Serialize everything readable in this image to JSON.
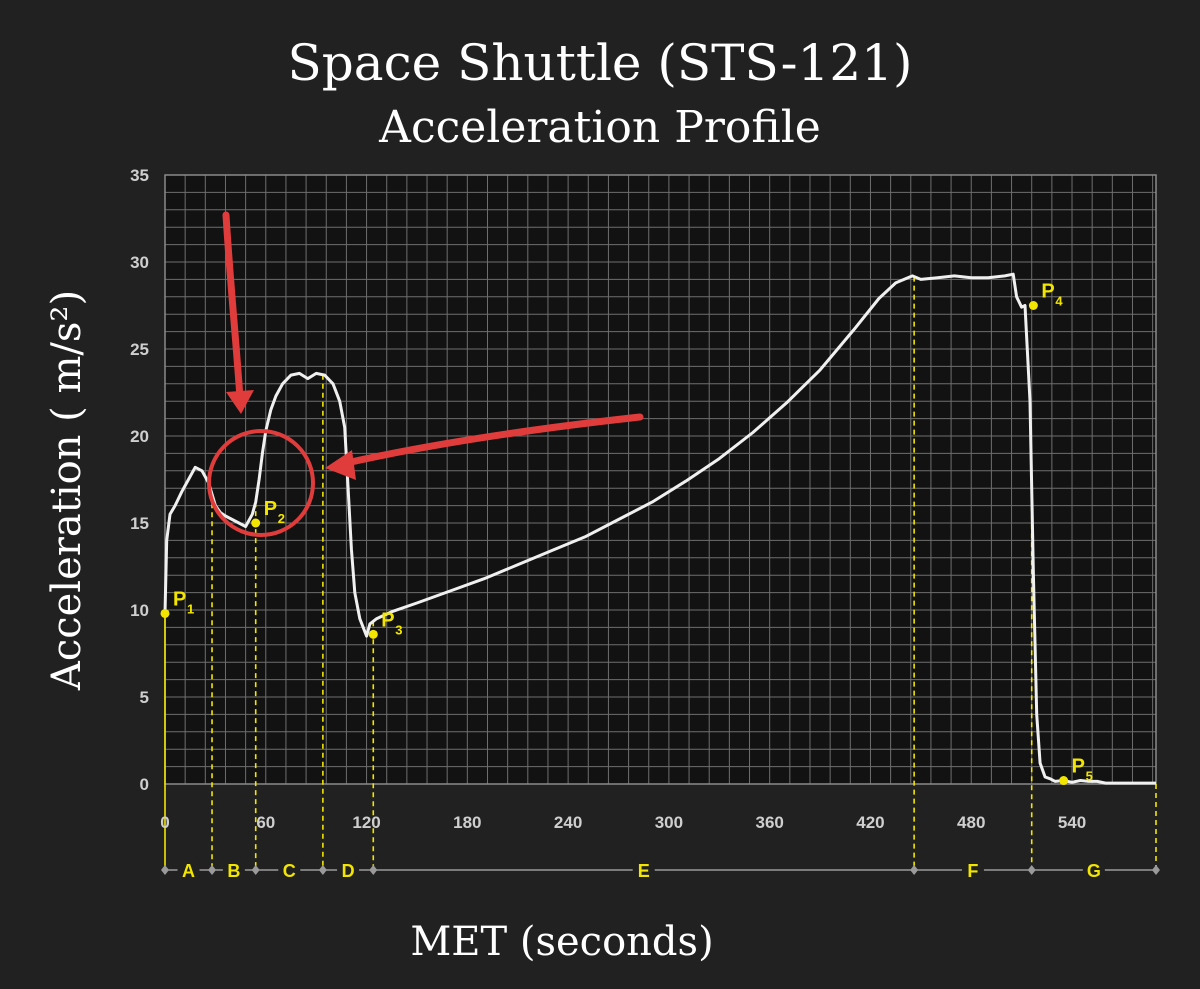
{
  "chart_data": {
    "type": "line",
    "title": "Space Shuttle (STS-121)",
    "subtitle": "Acceleration Profile",
    "xlabel": "MET (seconds)",
    "ylabel": "Acceleration ( m/s²)",
    "xlim": [
      0,
      590
    ],
    "ylim": [
      0,
      35
    ],
    "x_ticks": [
      0,
      60,
      120,
      180,
      240,
      300,
      360,
      420,
      480,
      540
    ],
    "y_ticks": [
      0,
      5,
      10,
      15,
      20,
      25,
      30,
      35
    ],
    "grid": true,
    "series": [
      {
        "color": "#f0f0f0",
        "x": [
          0,
          1,
          3,
          6,
          10,
          14,
          18,
          22,
          26,
          30,
          33,
          36,
          40,
          44,
          48,
          52,
          54,
          56,
          58,
          60,
          63,
          66,
          70,
          75,
          80,
          85,
          90,
          95,
          100,
          104,
          107,
          109,
          111,
          113,
          116,
          118,
          120,
          122,
          126,
          135,
          150,
          170,
          190,
          210,
          230,
          250,
          270,
          290,
          310,
          330,
          350,
          370,
          390,
          410,
          425,
          435,
          445,
          450,
          460,
          470,
          480,
          490,
          500,
          505,
          507,
          510,
          512,
          515,
          517,
          519,
          521,
          524,
          527,
          530,
          535,
          540,
          545,
          550,
          555,
          560,
          575,
          590
        ],
        "y": [
          9.8,
          14,
          15.5,
          16,
          16.8,
          17.5,
          18.2,
          18,
          17.3,
          16,
          15.6,
          15.4,
          15.2,
          15,
          14.8,
          15.5,
          16.2,
          17.5,
          19,
          20.3,
          21.5,
          22.3,
          23,
          23.5,
          23.6,
          23.3,
          23.6,
          23.5,
          23,
          22,
          20.5,
          17,
          13.5,
          11,
          9.5,
          9,
          8.5,
          9.2,
          9.5,
          9.9,
          10.4,
          11.1,
          11.8,
          12.6,
          13.4,
          14.2,
          15.2,
          16.2,
          17.4,
          18.7,
          20.2,
          21.9,
          23.8,
          26.1,
          27.9,
          28.8,
          29.2,
          29,
          29.1,
          29.2,
          29.1,
          29.1,
          29.2,
          29.3,
          28,
          27.4,
          27.5,
          22,
          12,
          4,
          1.2,
          0.4,
          0.3,
          0.15,
          0.2,
          0.1,
          0.2,
          0.15,
          0.15,
          0.05,
          0.05,
          0.05
        ]
      }
    ],
    "point_markers": [
      {
        "id": "P",
        "sub": "1",
        "x": 0,
        "y": 9.8
      },
      {
        "id": "P",
        "sub": "2",
        "x": 54,
        "y": 15
      },
      {
        "id": "P",
        "sub": "3",
        "x": 124,
        "y": 8.6
      },
      {
        "id": "P",
        "sub": "4",
        "x": 517,
        "y": 27.5
      },
      {
        "id": "P",
        "sub": "5",
        "x": 535,
        "y": 0.2
      }
    ],
    "phase_boundaries": [
      0,
      28,
      54,
      94,
      124,
      446,
      516,
      590
    ],
    "phase_labels": [
      "A",
      "B",
      "C",
      "D",
      "E",
      "F",
      "G"
    ],
    "colors": {
      "background": "#212121",
      "plot_background": "#121212",
      "grid": "#6e6e6e",
      "curve": "#f0f0f0",
      "markers": "#f2e600",
      "annotations": "#e03c3c"
    }
  }
}
